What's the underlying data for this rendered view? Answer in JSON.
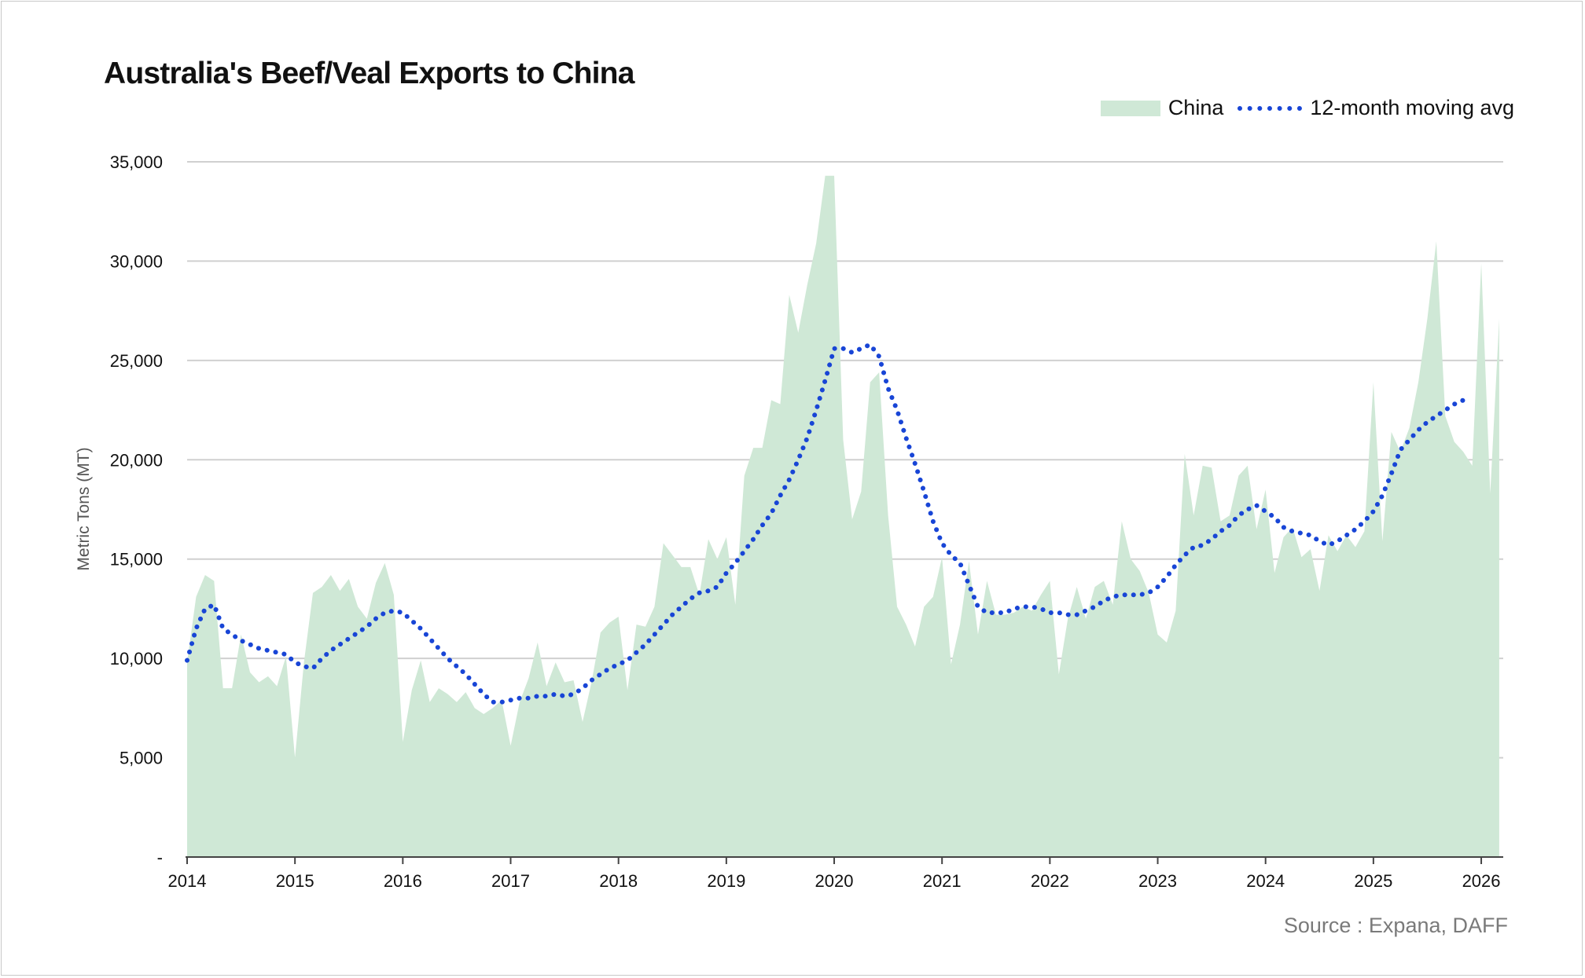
{
  "chart_data": {
    "type": "area",
    "title": "Australia's Beef/Veal Exports to China",
    "ylabel": "Metric Tons (MT)",
    "xlabel": "",
    "source": "Source : Expana, DAFF",
    "ylim": [
      0,
      35000
    ],
    "y_ticks": [
      0,
      5000,
      10000,
      15000,
      20000,
      25000,
      30000,
      35000
    ],
    "y_tick_labels": [
      "-",
      "5,000",
      "10,000",
      "15,000",
      "20,000",
      "25,000",
      "30,000",
      "35,000"
    ],
    "x_tick_years": [
      "2014",
      "2015",
      "2016",
      "2017",
      "2018",
      "2019",
      "2020",
      "2021",
      "2022",
      "2023",
      "2024",
      "2025",
      "2026"
    ],
    "legend": [
      {
        "name": "China",
        "style": "area",
        "color": "#cfe8d6"
      },
      {
        "name": "12-month moving avg",
        "style": "dotted-line",
        "color": "#1845d6"
      }
    ],
    "series": [
      {
        "name": "China",
        "start": "2014-01",
        "values": [
          9800,
          13100,
          14200,
          13900,
          8500,
          8500,
          11200,
          9300,
          8800,
          9100,
          8600,
          10100,
          5000,
          9800,
          13300,
          13600,
          14200,
          13400,
          14000,
          12600,
          12000,
          13800,
          14800,
          13200,
          5800,
          8400,
          9900,
          7800,
          8500,
          8200,
          7800,
          8300,
          7500,
          7200,
          7500,
          7900,
          5600,
          7800,
          9000,
          10800,
          8600,
          9800,
          8800,
          8900,
          6800,
          8800,
          11300,
          11800,
          12100,
          8400,
          11700,
          11600,
          12600,
          15800,
          15200,
          14600,
          14600,
          13200,
          16000,
          15000,
          16100,
          12700,
          19200,
          20600,
          20600,
          23000,
          22800,
          28300,
          26400,
          28800,
          30900,
          34300,
          34300,
          21000,
          17000,
          18400,
          23900,
          24400,
          17200,
          12600,
          11700,
          10600,
          12600,
          13100,
          15100,
          9700,
          11700,
          14900,
          11200,
          13900,
          12200,
          12200,
          12300,
          12600,
          12400,
          13200,
          13900,
          9200,
          12000,
          13600,
          12000,
          13600,
          13900,
          12700,
          16900,
          15000,
          14400,
          13300,
          11200,
          10800,
          12400,
          20300,
          17200,
          19700,
          19600,
          16900,
          17200,
          19200,
          19700,
          16500,
          18500,
          14300,
          16100,
          16600,
          15100,
          15500,
          13400,
          16200,
          15400,
          16200,
          15600,
          16400,
          23900,
          15900,
          21400,
          20400,
          21600,
          23900,
          27100,
          31000,
          22200,
          20900,
          20400,
          19700,
          29900,
          18300,
          27100
        ]
      },
      {
        "name": "12-month moving avg",
        "start": "2014-01",
        "values": [
          9900,
          11500,
          12500,
          12700,
          11500,
          11200,
          10900,
          10700,
          10500,
          10400,
          10300,
          10200,
          9800,
          9600,
          9500,
          10000,
          10400,
          10700,
          11000,
          11300,
          11600,
          12000,
          12300,
          12400,
          12300,
          11900,
          11500,
          11000,
          10500,
          10000,
          9600,
          9200,
          8700,
          8200,
          7800,
          7800,
          7900,
          8000,
          8000,
          8100,
          8100,
          8200,
          8100,
          8200,
          8500,
          8900,
          9200,
          9500,
          9700,
          9900,
          10300,
          10700,
          11200,
          11700,
          12200,
          12600,
          13000,
          13300,
          13400,
          13600,
          14300,
          14800,
          15400,
          16000,
          16700,
          17300,
          18200,
          19000,
          20000,
          21100,
          22500,
          24000,
          25600,
          25600,
          25400,
          25600,
          25800,
          25200,
          23600,
          22500,
          21100,
          19800,
          18400,
          16900,
          15800,
          15200,
          14800,
          13700,
          12600,
          12300,
          12300,
          12300,
          12500,
          12600,
          12600,
          12500,
          12300,
          12300,
          12200,
          12200,
          12400,
          12600,
          12900,
          13100,
          13200,
          13200,
          13200,
          13300,
          13600,
          14100,
          14700,
          15200,
          15600,
          15700,
          16000,
          16400,
          16700,
          17200,
          17500,
          17700,
          17400,
          17100,
          16600,
          16400,
          16300,
          16200,
          15900,
          15700,
          15900,
          16200,
          16500,
          16900,
          17400,
          18200,
          19300,
          20500,
          21000,
          21500,
          21900,
          22200,
          22500,
          22800,
          23000
        ]
      }
    ]
  }
}
